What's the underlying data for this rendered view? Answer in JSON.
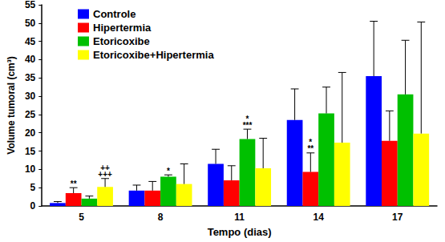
{
  "chart_data": {
    "type": "bar",
    "x_label": "Tempo (dias)",
    "y_label": "Volume tumoral (cm³)",
    "categories": [
      "5",
      "8",
      "11",
      "14",
      "17"
    ],
    "ylim": [
      0,
      55
    ],
    "yticks": [
      0,
      5,
      10,
      15,
      20,
      25,
      30,
      35,
      40,
      45,
      50,
      55
    ],
    "grid": false,
    "legend": "top-left",
    "series": [
      {
        "name": "Controle",
        "color": "#0000ff",
        "values": [
          0.8,
          4.2,
          11.5,
          23.5,
          35.5
        ],
        "errors": [
          0.4,
          1.5,
          4.0,
          8.5,
          15.0
        ],
        "annotations": [
          null,
          null,
          null,
          null,
          null
        ]
      },
      {
        "name": "Hipertermia",
        "color": "#ff0000",
        "values": [
          3.5,
          4.2,
          7.0,
          9.3,
          17.8
        ],
        "errors": [
          1.5,
          2.5,
          4.0,
          5.2,
          8.2
        ],
        "annotations": [
          [
            "**"
          ],
          null,
          null,
          [
            "*",
            "**"
          ],
          null
        ]
      },
      {
        "name": "Etoricoxibe",
        "color": "#00c000",
        "values": [
          2.0,
          8.0,
          18.3,
          25.3,
          30.5
        ],
        "errors": [
          0.7,
          0.5,
          2.7,
          7.2,
          14.8
        ],
        "annotations": [
          null,
          [
            "*"
          ],
          [
            "*",
            "***"
          ],
          null,
          null
        ]
      },
      {
        "name": "Etoricoxibe+Hipertermia",
        "color": "#ffff00",
        "values": [
          5.2,
          6.0,
          10.3,
          17.3,
          19.8
        ],
        "errors": [
          2.3,
          5.5,
          8.2,
          19.2,
          30.5
        ],
        "annotations": [
          [
            "++",
            "+++"
          ],
          null,
          null,
          null,
          null
        ]
      }
    ]
  }
}
